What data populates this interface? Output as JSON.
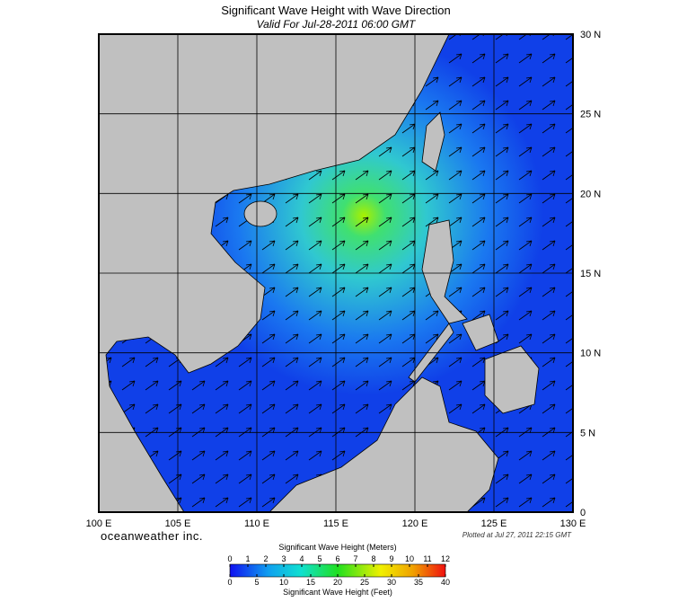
{
  "header": {
    "title": "Significant Wave Height with Wave Direction",
    "subtitle": "Valid For Jul-28-2011 06:00 GMT"
  },
  "map": {
    "lon_range": [
      100,
      130
    ],
    "lat_range": [
      0,
      30
    ],
    "lon_ticks": [
      {
        "value": 100,
        "label": "100 E"
      },
      {
        "value": 105,
        "label": "105 E"
      },
      {
        "value": 110,
        "label": "110 E"
      },
      {
        "value": 115,
        "label": "115 E"
      },
      {
        "value": 120,
        "label": "120 E"
      },
      {
        "value": 125,
        "label": "125 E"
      },
      {
        "value": 130,
        "label": "130 E"
      }
    ],
    "lat_ticks": [
      {
        "value": 0,
        "label": "0"
      },
      {
        "value": 5,
        "label": "5 N"
      },
      {
        "value": 10,
        "label": "10 N"
      },
      {
        "value": 15,
        "label": "15 N"
      },
      {
        "value": 20,
        "label": "20 N"
      },
      {
        "value": 25,
        "label": "25 N"
      },
      {
        "value": 30,
        "label": "30 N"
      }
    ]
  },
  "footer": {
    "brand": "oceanweather inc.",
    "plotted": "Plotted at Jul 27, 2011 22:15 GMT"
  },
  "colorbar": {
    "meters_title": "Significant Wave Height (Meters)",
    "meters_range": [
      0,
      12
    ],
    "meters_ticks": [
      0,
      1,
      2,
      3,
      4,
      5,
      6,
      7,
      8,
      9,
      10,
      11,
      12
    ],
    "feet_title": "Significant Wave Height (Feet)",
    "feet_range": [
      0,
      40
    ],
    "feet_ticks": [
      0,
      5,
      10,
      15,
      20,
      25,
      30,
      35,
      40
    ]
  }
}
